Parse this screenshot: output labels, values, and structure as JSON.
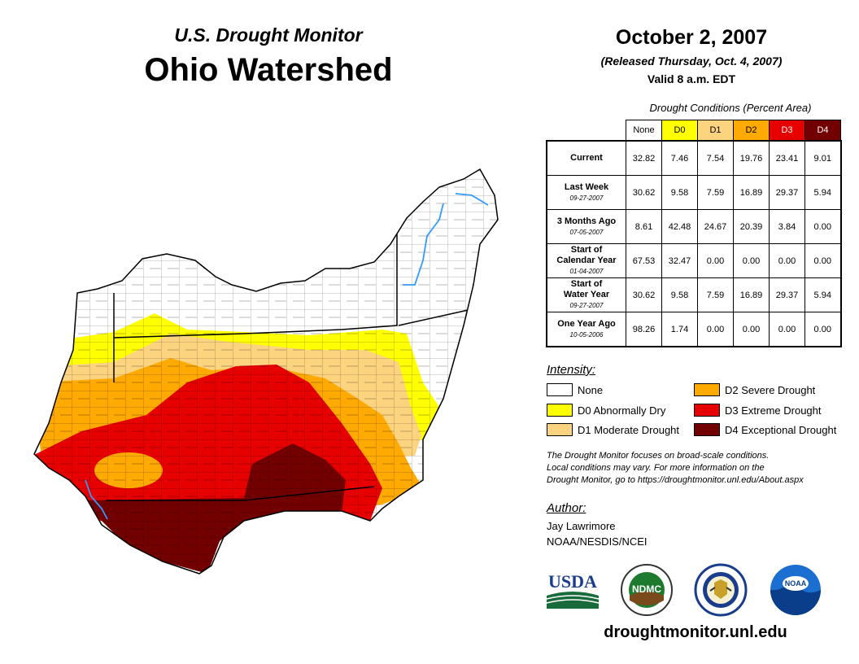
{
  "header": {
    "subtitle": "U.S. Drought Monitor",
    "title": "Ohio Watershed",
    "date": "October 2, 2007",
    "released": "(Released Thursday, Oct. 4, 2007)",
    "valid": "Valid 8 a.m. EDT"
  },
  "table": {
    "caption": "Drought Conditions (Percent Area)",
    "columns": [
      "None",
      "D0",
      "D1",
      "D2",
      "D3",
      "D4"
    ],
    "column_colors": [
      "#ffffff",
      "#ffff00",
      "#fcd37f",
      "#ffaa00",
      "#e60000",
      "#730000"
    ],
    "rows": [
      {
        "label": "Current",
        "label2": "",
        "date": "",
        "values": [
          "32.82",
          "7.46",
          "7.54",
          "19.76",
          "23.41",
          "9.01"
        ]
      },
      {
        "label": "Last Week",
        "label2": "",
        "date": "09-27-2007",
        "values": [
          "30.62",
          "9.58",
          "7.59",
          "16.89",
          "29.37",
          "5.94"
        ]
      },
      {
        "label": "3 Months Ago",
        "label2": "",
        "date": "07-05-2007",
        "values": [
          "8.61",
          "42.48",
          "24.67",
          "20.39",
          "3.84",
          "0.00"
        ]
      },
      {
        "label": "Start of",
        "label2": "Calendar Year",
        "date": "01-04-2007",
        "values": [
          "67.53",
          "32.47",
          "0.00",
          "0.00",
          "0.00",
          "0.00"
        ]
      },
      {
        "label": "Start of",
        "label2": "Water Year",
        "date": "09-27-2007",
        "values": [
          "30.62",
          "9.58",
          "7.59",
          "16.89",
          "29.37",
          "5.94"
        ]
      },
      {
        "label": "One Year Ago",
        "label2": "",
        "date": "10-05-2006",
        "values": [
          "98.26",
          "1.74",
          "0.00",
          "0.00",
          "0.00",
          "0.00"
        ]
      }
    ]
  },
  "legend": {
    "heading": "Intensity:",
    "items": [
      {
        "label": "None",
        "color": "#ffffff"
      },
      {
        "label": "D0 Abnormally Dry",
        "color": "#ffff00"
      },
      {
        "label": "D1 Moderate Drought",
        "color": "#fcd37f"
      },
      {
        "label": "D2 Severe Drought",
        "color": "#ffaa00"
      },
      {
        "label": "D3 Extreme Drought",
        "color": "#e60000"
      },
      {
        "label": "D4 Exceptional Drought",
        "color": "#730000"
      }
    ]
  },
  "note": {
    "line1": "The Drought Monitor focuses on broad-scale conditions.",
    "line2": "Local conditions may vary. For more information on the",
    "line3": "Drought Monitor, go to https://droughtmonitor.unl.edu/About.aspx"
  },
  "author": {
    "heading": "Author:",
    "name": "Jay Lawrimore",
    "org": "NOAA/NESDIS/NCEI"
  },
  "logos": {
    "usda": "USDA",
    "ndmc": "NDMC",
    "noaa": "NOAA"
  },
  "footer": {
    "url": "droughtmonitor.unl.edu"
  },
  "map": {
    "river_color": "#3399ff"
  }
}
